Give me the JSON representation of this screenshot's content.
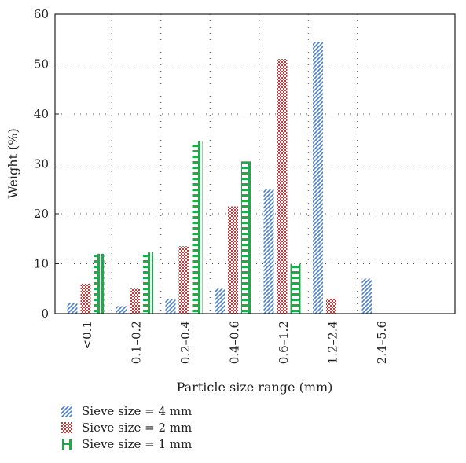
{
  "chart_data": {
    "type": "bar",
    "categories": [
      "<0.1",
      "0.1–0.2",
      "0.2–0.4",
      "0.4–0.6",
      "0.6–1.2",
      "1.2–2.4",
      "2.4–5.6"
    ],
    "series": [
      {
        "name": "Sieve size = 4 mm",
        "values": [
          2.2,
          1.5,
          3.0,
          5.0,
          25.0,
          54.5,
          7.0
        ],
        "color": "#4a7fd0",
        "pattern": "diagonal-hatch"
      },
      {
        "name": "Sieve size = 2 mm",
        "values": [
          6.0,
          5.0,
          13.5,
          21.5,
          51.0,
          3.0,
          null
        ],
        "color": "#c0393b",
        "pattern": "checker"
      },
      {
        "name": "Sieve size = 1 mm",
        "values": [
          12.0,
          12.3,
          34.5,
          30.5,
          10.0,
          null,
          null
        ],
        "color": "#22a84a",
        "pattern": "ladder"
      }
    ],
    "xlabel": "Particle size range (mm)",
    "ylabel": "Weight (%)",
    "ylim": [
      0,
      60
    ],
    "yticks": [
      "0",
      "10",
      "20",
      "30",
      "40",
      "50",
      "60"
    ],
    "grid": true,
    "grid_style": "dotted",
    "legend_position": "bottom-left"
  }
}
